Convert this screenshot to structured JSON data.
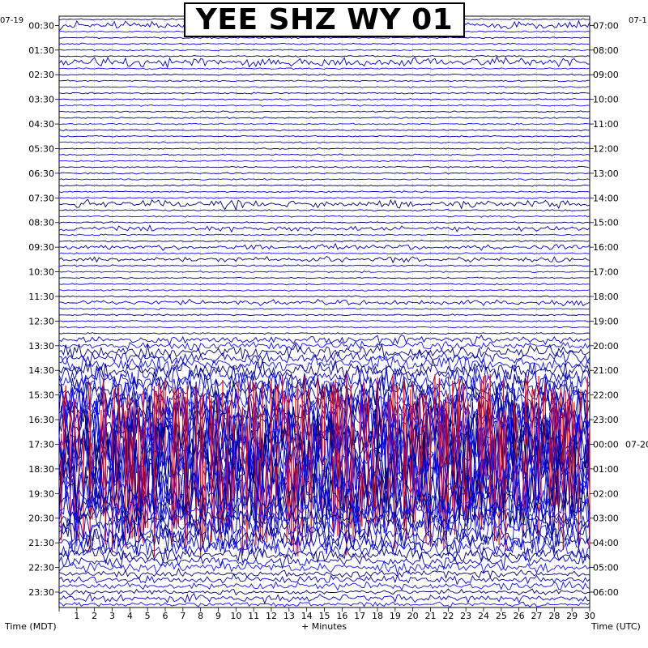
{
  "chart_data": {
    "type": "helicorder",
    "title": "YEE SHZ WY 01",
    "xlabel": "+ Minutes",
    "ylabel_left": "Time (MDT)",
    "ylabel_right": "Time (UTC)",
    "start_date_left": "07-19",
    "start_date_right": "07-1",
    "date_change_label": "07-20",
    "x_ticks": [
      "1",
      "2",
      "3",
      "4",
      "5",
      "6",
      "7",
      "8",
      "9",
      "10",
      "11",
      "12",
      "13",
      "14",
      "15",
      "16",
      "17",
      "18",
      "19",
      "20",
      "21",
      "22",
      "23",
      "24",
      "25",
      "26",
      "27",
      "28",
      "29",
      "30"
    ],
    "xlim": [
      0,
      30
    ],
    "left_time_labels": [
      "00:30",
      "01:30",
      "02:30",
      "03:30",
      "04:30",
      "05:30",
      "06:30",
      "07:30",
      "08:30",
      "09:30",
      "10:30",
      "11:30",
      "12:30",
      "13:30",
      "14:30",
      "15:30",
      "16:30",
      "17:30",
      "18:30",
      "19:30",
      "20:30",
      "21:30",
      "22:30",
      "23:30"
    ],
    "right_time_labels": [
      "07:00",
      "08:00",
      "09:00",
      "10:00",
      "11:00",
      "12:00",
      "13:00",
      "14:00",
      "15:00",
      "16:00",
      "17:00",
      "18:00",
      "19:00",
      "20:00",
      "21:00",
      "22:00",
      "23:00",
      "00:00",
      "01:00",
      "02:00",
      "03:00",
      "04:00",
      "05:00",
      "06:00"
    ],
    "trace_colors": [
      "#00006e",
      "#0000c8",
      "#1010ff"
    ],
    "clip_color": "#ff0000",
    "grid": true,
    "minutes_per_trace": 15,
    "trace_count": 96,
    "trace_activity": [
      1,
      3,
      1,
      1,
      1,
      1,
      1,
      4,
      1,
      1,
      1,
      1,
      1,
      1,
      1,
      1,
      1,
      1,
      1,
      1,
      1,
      1,
      1,
      1,
      1,
      1,
      1,
      1,
      1,
      1,
      3,
      1,
      1,
      1,
      2,
      1,
      1,
      2,
      1,
      2,
      1,
      1,
      1,
      1,
      1,
      1,
      2,
      1,
      1,
      1,
      1,
      1,
      3,
      3,
      5,
      5,
      6,
      7,
      9,
      10,
      11,
      13,
      16,
      18,
      20,
      22,
      25,
      27,
      30,
      32,
      34,
      36,
      38,
      40,
      40,
      38,
      34,
      28,
      22,
      18,
      12,
      10,
      12,
      14,
      12,
      10,
      8,
      6,
      5,
      4,
      3,
      3,
      3,
      2,
      3,
      2
    ]
  }
}
